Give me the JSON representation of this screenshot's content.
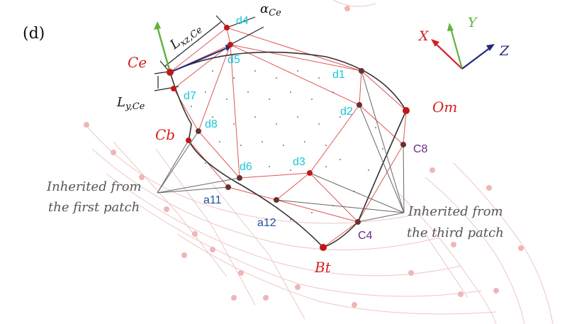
{
  "panel_label": "(d)",
  "colors": {
    "red_label": "#d42020",
    "cyan_label": "#18c8d8",
    "blue_label": "#1f4e9c",
    "purple_label": "#6a2a8c",
    "axis_x": "#d42020",
    "axis_y": "#5db33a",
    "axis_z": "#1f2a7a",
    "gray_text": "#555555"
  },
  "axes": {
    "x": "X",
    "y": "Y",
    "z": "Z"
  },
  "points_main": {
    "ce": "Ce",
    "cb": "Cb",
    "om": "Om",
    "bt": "Bt"
  },
  "points_cyan": {
    "d1": "d1",
    "d2": "d2",
    "d3": "d3",
    "d4": "d4",
    "d5": "d5",
    "d6": "d6",
    "d7": "d7",
    "d8": "d8"
  },
  "points_blue": {
    "a11": "a11",
    "a12": "a12"
  },
  "points_purple": {
    "c4": "C4",
    "c8": "C8"
  },
  "dimensions": {
    "lxz_main": "L",
    "lxz_sub": "xz,Ce",
    "ly_main": "L",
    "ly_sub": "y,Ce",
    "alpha_main": "α",
    "alpha_sub": "Ce"
  },
  "annotations": {
    "first_patch_line1": "Inherited from",
    "first_patch_line2": "the first patch",
    "third_patch_line1": "Inherited from",
    "third_patch_line2": "the third patch"
  }
}
